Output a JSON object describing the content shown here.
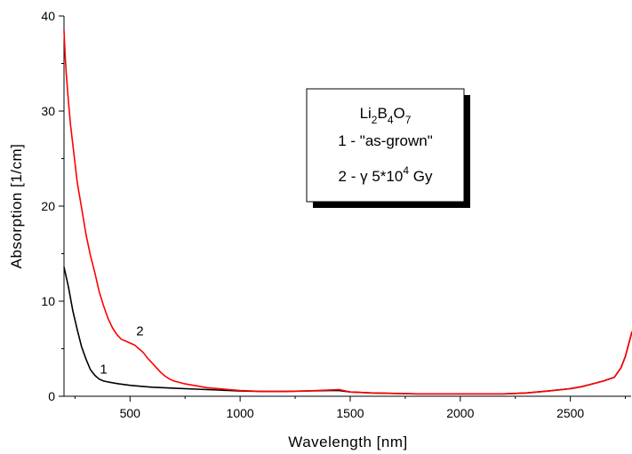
{
  "chart_data": {
    "type": "line",
    "xlabel": "Wavelength [nm]",
    "ylabel": "Absorption [1/cm]",
    "xlim": [
      200,
      2780
    ],
    "ylim": [
      0,
      40
    ],
    "xticks": [
      500,
      1000,
      1500,
      2000,
      2500
    ],
    "yticks": [
      0,
      10,
      20,
      30,
      40
    ],
    "grid": false,
    "legend": {
      "placement": "top-center",
      "compound": {
        "parts": [
          {
            "text": "Li",
            "sub": false
          },
          {
            "text": "2",
            "sub": true
          },
          {
            "text": "B",
            "sub": false
          },
          {
            "text": "4",
            "sub": true
          },
          {
            "text": "O",
            "sub": false
          },
          {
            "text": "7",
            "sub": true
          }
        ]
      },
      "line1": "1 - \"as-grown\"",
      "line2_prefix": "2 - γ 5*10",
      "line2_exp": "4",
      "line2_suffix": " Gy"
    },
    "series": [
      {
        "name": "1",
        "color": "#000000",
        "x": [
          200,
          220,
          240,
          260,
          280,
          300,
          320,
          340,
          360,
          380,
          400,
          450,
          500,
          550,
          600,
          700,
          800,
          900,
          1000,
          1100,
          1200,
          1300,
          1400,
          1450,
          1500,
          1600,
          1700,
          1800,
          1900,
          2000,
          2100,
          2200,
          2300,
          2400,
          2500,
          2550,
          2600,
          2650,
          2700,
          2730,
          2750,
          2765,
          2780
        ],
        "values": [
          13.6,
          11.5,
          9.0,
          7.0,
          5.2,
          3.9,
          2.8,
          2.2,
          1.8,
          1.6,
          1.5,
          1.3,
          1.15,
          1.05,
          0.95,
          0.85,
          0.75,
          0.65,
          0.55,
          0.5,
          0.5,
          0.55,
          0.6,
          0.6,
          0.45,
          0.35,
          0.3,
          0.25,
          0.25,
          0.25,
          0.25,
          0.25,
          0.35,
          0.55,
          0.8,
          1.0,
          1.3,
          1.6,
          2.0,
          3.0,
          4.2,
          5.5,
          6.8
        ]
      },
      {
        "name": "2",
        "color": "#ff0000",
        "x": [
          200,
          205,
          210,
          220,
          230,
          240,
          250,
          260,
          280,
          300,
          320,
          340,
          360,
          380,
          400,
          420,
          440,
          460,
          480,
          500,
          520,
          540,
          560,
          580,
          600,
          620,
          640,
          660,
          680,
          700,
          750,
          800,
          850,
          900,
          950,
          1000,
          1050,
          1100,
          1200,
          1300,
          1400,
          1450,
          1500,
          1600,
          1700,
          1800,
          1900,
          2000,
          2100,
          2200,
          2300,
          2400,
          2500,
          2550,
          2600,
          2650,
          2700,
          2730,
          2750,
          2765,
          2780
        ],
        "values": [
          38.5,
          36.0,
          34.0,
          31.0,
          28.5,
          26.5,
          24.5,
          22.5,
          19.8,
          17.0,
          14.8,
          13.0,
          11.0,
          9.5,
          8.2,
          7.2,
          6.5,
          6.0,
          5.8,
          5.6,
          5.4,
          5.0,
          4.6,
          4.0,
          3.5,
          3.0,
          2.5,
          2.1,
          1.8,
          1.6,
          1.3,
          1.1,
          0.9,
          0.8,
          0.7,
          0.6,
          0.55,
          0.5,
          0.5,
          0.55,
          0.65,
          0.7,
          0.45,
          0.35,
          0.3,
          0.25,
          0.25,
          0.25,
          0.25,
          0.25,
          0.35,
          0.55,
          0.8,
          1.0,
          1.3,
          1.6,
          2.0,
          3.0,
          4.2,
          5.5,
          6.8
        ]
      }
    ],
    "curve_labels": [
      {
        "text": "1",
        "x": 380,
        "y": 2.4
      },
      {
        "text": "2",
        "x": 545,
        "y": 6.4
      }
    ]
  }
}
